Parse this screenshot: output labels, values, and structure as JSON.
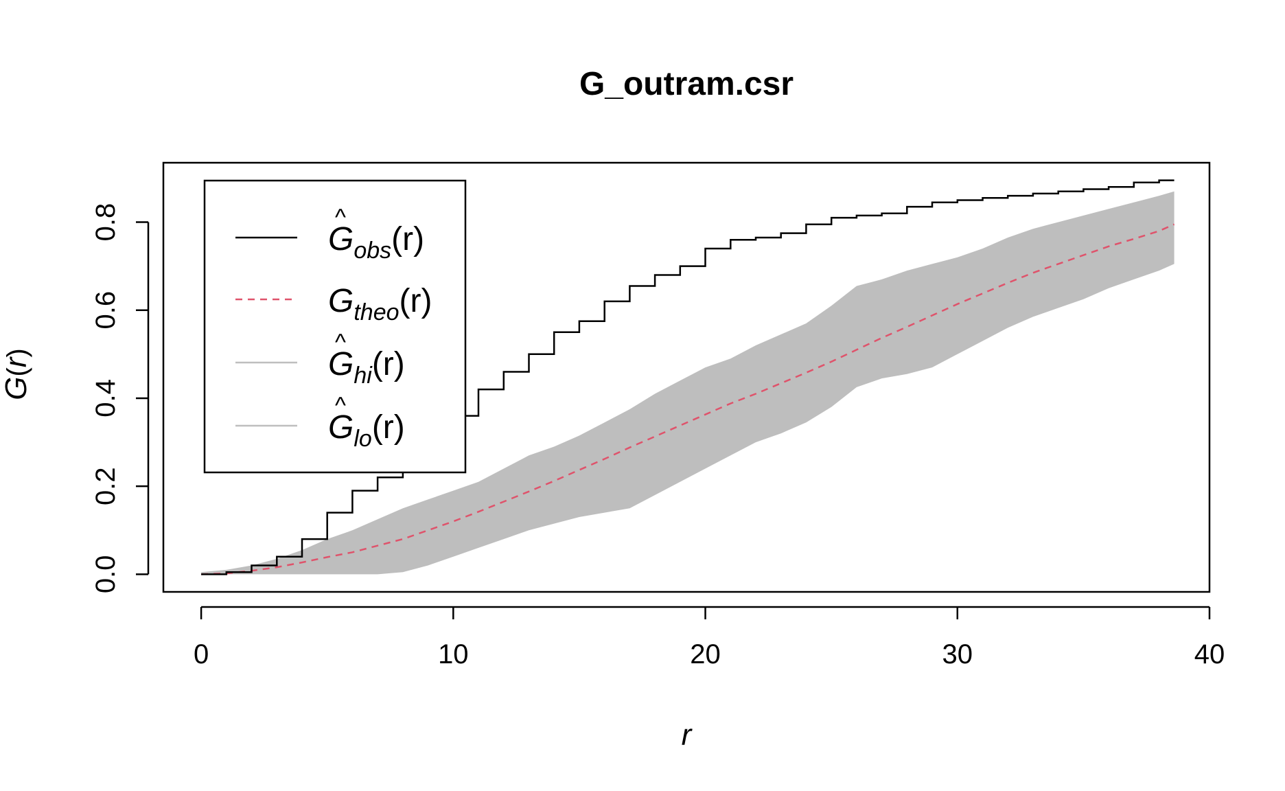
{
  "chart_data": {
    "type": "line",
    "title": "G_outram.csr",
    "xlabel": "r",
    "ylabel_main": "G",
    "ylabel_arg": "r",
    "xlim": [
      -1.5,
      40
    ],
    "ylim": [
      -0.04,
      0.935
    ],
    "x_ticks": [
      0,
      10,
      20,
      30,
      40
    ],
    "y_ticks": [
      0.0,
      0.2,
      0.4,
      0.6,
      0.8
    ],
    "x_tick_labels": [
      "0",
      "10",
      "20",
      "30",
      "40"
    ],
    "y_tick_labels": [
      "0.0",
      "0.2",
      "0.4",
      "0.6",
      "0.8"
    ],
    "grid": false,
    "legend_position": "top-left",
    "colors": {
      "obs": "#000000",
      "theo": "#DF536B",
      "envelope": "#BEBEBE",
      "axis": "#000000"
    },
    "legend": [
      {
        "key": "obs",
        "hat": true,
        "main": "G",
        "sub": "obs",
        "arg": "(r)",
        "style": "solid"
      },
      {
        "key": "theo",
        "hat": false,
        "main": "G",
        "sub": "theo",
        "arg": "(r)",
        "style": "dashed"
      },
      {
        "key": "hi",
        "hat": true,
        "main": "G",
        "sub": "hi",
        "arg": "(r)",
        "style": "solid"
      },
      {
        "key": "lo",
        "hat": true,
        "main": "G",
        "sub": "lo",
        "arg": "(r)",
        "style": "solid"
      }
    ],
    "x": [
      0,
      1,
      2,
      3,
      4,
      5,
      6,
      7,
      8,
      9,
      10,
      11,
      12,
      13,
      14,
      15,
      16,
      17,
      18,
      19,
      20,
      21,
      22,
      23,
      24,
      25,
      26,
      27,
      28,
      29,
      30,
      31,
      32,
      33,
      34,
      35,
      36,
      37,
      38,
      38.6
    ],
    "series": [
      {
        "key": "obs",
        "values": [
          0,
          0.005,
          0.02,
          0.04,
          0.08,
          0.14,
          0.19,
          0.22,
          0.245,
          0.3,
          0.36,
          0.42,
          0.46,
          0.5,
          0.55,
          0.575,
          0.62,
          0.655,
          0.68,
          0.7,
          0.74,
          0.76,
          0.765,
          0.775,
          0.795,
          0.81,
          0.815,
          0.82,
          0.835,
          0.845,
          0.85,
          0.855,
          0.86,
          0.865,
          0.87,
          0.875,
          0.88,
          0.89,
          0.895,
          0.895
        ]
      },
      {
        "key": "theo",
        "values": [
          0,
          0.002,
          0.008,
          0.016,
          0.027,
          0.039,
          0.05,
          0.065,
          0.08,
          0.1,
          0.12,
          0.142,
          0.165,
          0.188,
          0.212,
          0.237,
          0.262,
          0.288,
          0.313,
          0.338,
          0.363,
          0.388,
          0.41,
          0.434,
          0.458,
          0.483,
          0.51,
          0.537,
          0.562,
          0.588,
          0.614,
          0.638,
          0.662,
          0.685,
          0.705,
          0.725,
          0.745,
          0.762,
          0.78,
          0.795
        ]
      },
      {
        "key": "hi",
        "values": [
          0.005,
          0.01,
          0.02,
          0.035,
          0.055,
          0.08,
          0.1,
          0.125,
          0.15,
          0.17,
          0.19,
          0.21,
          0.24,
          0.27,
          0.29,
          0.315,
          0.345,
          0.375,
          0.41,
          0.44,
          0.47,
          0.49,
          0.52,
          0.545,
          0.57,
          0.61,
          0.655,
          0.67,
          0.69,
          0.705,
          0.72,
          0.74,
          0.765,
          0.785,
          0.8,
          0.815,
          0.83,
          0.845,
          0.86,
          0.87
        ]
      },
      {
        "key": "lo",
        "values": [
          0,
          0,
          0,
          0,
          0,
          0,
          0,
          0,
          0.005,
          0.02,
          0.04,
          0.06,
          0.08,
          0.1,
          0.115,
          0.13,
          0.14,
          0.15,
          0.18,
          0.21,
          0.24,
          0.27,
          0.3,
          0.32,
          0.345,
          0.38,
          0.425,
          0.445,
          0.455,
          0.47,
          0.5,
          0.53,
          0.56,
          0.585,
          0.605,
          0.625,
          0.65,
          0.67,
          0.69,
          0.705
        ]
      }
    ]
  }
}
